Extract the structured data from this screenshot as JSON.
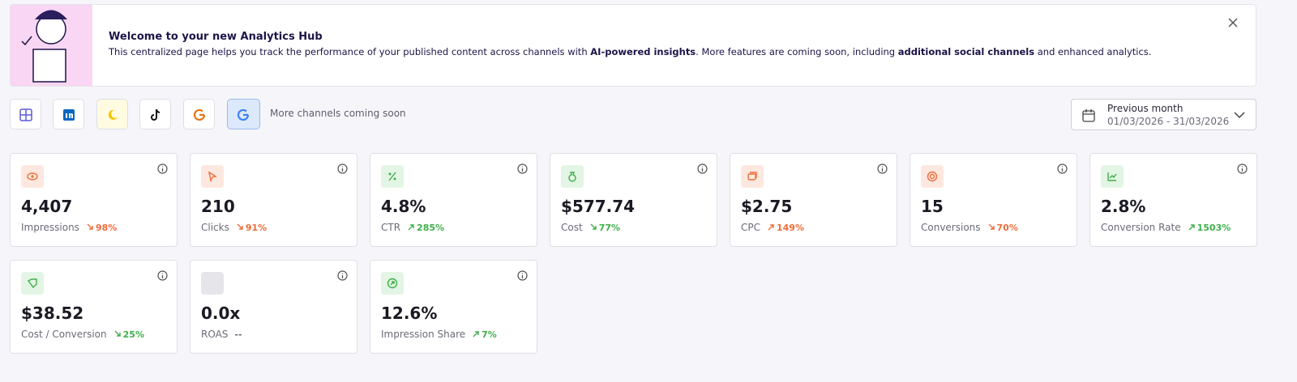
{
  "banner": {
    "title": "Welcome to your new Analytics Hub",
    "text_parts": [
      {
        "text": "This centralized page helps you track the performance of your published content across channels with ",
        "bold": false
      },
      {
        "text": "AI-powered insights",
        "bold": true
      },
      {
        "text": ". More features are coming soon, including ",
        "bold": false
      },
      {
        "text": "additional social channels",
        "bold": true
      },
      {
        "text": " and enhanced analytics.",
        "bold": false
      }
    ]
  },
  "channels_note": "More channels coming soon",
  "date_range": {
    "label": "Previous month",
    "range": "01/03/2026 - 31/03/2026"
  },
  "metrics": [
    {
      "value": "4,407",
      "label": "Impressions",
      "change": "98%",
      "trend": "down",
      "tone": "negative"
    },
    {
      "value": "210",
      "label": "Clicks",
      "change": "91%",
      "trend": "down",
      "tone": "negative"
    },
    {
      "value": "4.8%",
      "label": "CTR",
      "change": "285%",
      "trend": "up",
      "tone": "positive"
    },
    {
      "value": "$577.74",
      "label": "Cost",
      "change": "77%",
      "trend": "down",
      "tone": "positive"
    },
    {
      "value": "$2.75",
      "label": "CPC",
      "change": "149%",
      "trend": "up",
      "tone": "negative"
    },
    {
      "value": "15",
      "label": "Conversions",
      "change": "70%",
      "trend": "down",
      "tone": "negative"
    },
    {
      "value": "2.8%",
      "label": "Conversion Rate",
      "change": "1503%",
      "trend": "up",
      "tone": "positive"
    },
    {
      "value": "$38.52",
      "label": "Cost / Conversion",
      "change": "25%",
      "trend": "down",
      "tone": "positive"
    },
    {
      "value": "0.0x",
      "label": "ROAS",
      "change": "--",
      "trend": "none",
      "tone": "neutral"
    },
    {
      "value": "12.6%",
      "label": "Impression Share",
      "change": "7%",
      "trend": "up",
      "tone": "positive"
    }
  ]
}
